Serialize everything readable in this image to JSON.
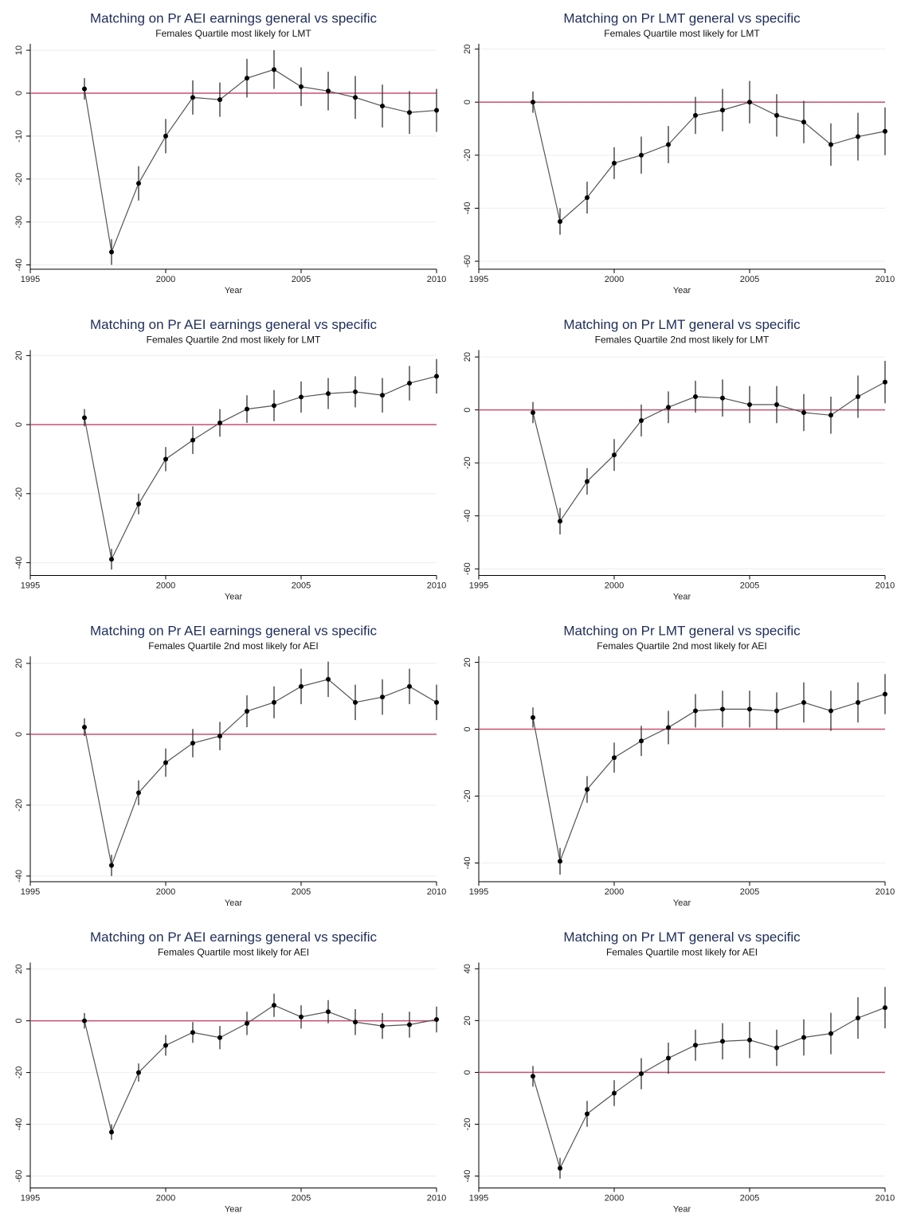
{
  "chart_data": [
    {
      "type": "line",
      "title": "Matching on Pr AEI earnings general vs specific",
      "subtitle": "Females Quartile most likely for LMT",
      "xlabel": "Year",
      "x": [
        1997,
        1998,
        1999,
        2000,
        2001,
        2002,
        2003,
        2004,
        2005,
        2006,
        2007,
        2008,
        2009,
        2010
      ],
      "values": [
        1,
        -37,
        -21,
        -10,
        -1,
        -1.5,
        3.5,
        5.5,
        1.5,
        0.5,
        -1,
        -3,
        -4.5,
        -4
      ],
      "errors": [
        2.5,
        3,
        4,
        4,
        4,
        4,
        4.5,
        4.5,
        4.5,
        4.5,
        5,
        5,
        5,
        5
      ],
      "xlim": [
        1995,
        2010
      ],
      "xticks": [
        1995,
        2000,
        2005,
        2010
      ],
      "ylim": [
        -41,
        11.5
      ],
      "yticks": [
        -40,
        -30,
        -20,
        -10,
        0,
        10
      ],
      "hline": 0,
      "color": "#555555",
      "marker_color": "#000000",
      "hline_color": "#c8506e",
      "grid": true
    },
    {
      "type": "line",
      "title": "Matching on Pr LMT general vs specific",
      "subtitle": "Females Quartile most likely for LMT",
      "xlabel": "Year",
      "x": [
        1997,
        1998,
        1999,
        2000,
        2001,
        2002,
        2003,
        2004,
        2005,
        2006,
        2007,
        2008,
        2009,
        2010
      ],
      "values": [
        0,
        -45,
        -36,
        -23,
        -20,
        -16,
        -5,
        -3,
        0,
        -5,
        -7.5,
        -16,
        -13,
        -11
      ],
      "errors": [
        4,
        5,
        6,
        6,
        7,
        7,
        7,
        8,
        8,
        8,
        8,
        8,
        9,
        9
      ],
      "xlim": [
        1995,
        2010
      ],
      "xticks": [
        1995,
        2000,
        2005,
        2010
      ],
      "ylim": [
        -63,
        22
      ],
      "yticks": [
        -60,
        -40,
        -20,
        0,
        20
      ],
      "hline": 0,
      "color": "#555555",
      "marker_color": "#000000",
      "hline_color": "#c8506e",
      "grid": true
    },
    {
      "type": "line",
      "title": "Matching on Pr AEI earnings general vs specific",
      "subtitle": "Females Quartile 2nd most likely for LMT",
      "xlabel": "Year",
      "x": [
        1997,
        1998,
        1999,
        2000,
        2001,
        2002,
        2003,
        2004,
        2005,
        2006,
        2007,
        2008,
        2009,
        2010
      ],
      "values": [
        2,
        -39,
        -23,
        -10,
        -4.5,
        0.5,
        4.5,
        5.5,
        8,
        9,
        9.5,
        8.5,
        12,
        14
      ],
      "errors": [
        2.5,
        3,
        3,
        3.5,
        4,
        4,
        4,
        4.5,
        4.5,
        4.5,
        4.5,
        5,
        5,
        5
      ],
      "xlim": [
        1995,
        2010
      ],
      "xticks": [
        1995,
        2000,
        2005,
        2010
      ],
      "ylim": [
        -43.7,
        21.6
      ],
      "yticks": [
        -40,
        -20,
        0,
        20
      ],
      "hline": 0,
      "color": "#555555",
      "marker_color": "#000000",
      "hline_color": "#c8506e",
      "grid": true
    },
    {
      "type": "line",
      "title": "Matching on Pr LMT general vs specific",
      "subtitle": "Females Quartile 2nd most likely for LMT",
      "xlabel": "Year",
      "x": [
        1997,
        1998,
        1999,
        2000,
        2001,
        2002,
        2003,
        2004,
        2005,
        2006,
        2007,
        2008,
        2009,
        2010
      ],
      "values": [
        -1,
        -42,
        -27,
        -17,
        -4,
        1,
        5,
        4.5,
        2,
        2,
        -1,
        -2,
        5,
        10.5
      ],
      "errors": [
        4,
        5,
        5,
        6,
        6,
        6,
        6,
        7,
        7,
        7,
        7,
        7,
        8,
        8
      ],
      "xlim": [
        1995,
        2010
      ],
      "xticks": [
        1995,
        2000,
        2005,
        2010
      ],
      "ylim": [
        -62.5,
        22.6
      ],
      "yticks": [
        -60,
        -40,
        -20,
        0,
        20
      ],
      "hline": 0,
      "color": "#555555",
      "marker_color": "#000000",
      "hline_color": "#c8506e",
      "grid": true
    },
    {
      "type": "line",
      "title": "Matching on Pr AEI earnings general vs specific",
      "subtitle": "Females Quartile 2nd most likely for AEI",
      "xlabel": "Year",
      "x": [
        1997,
        1998,
        1999,
        2000,
        2001,
        2002,
        2003,
        2004,
        2005,
        2006,
        2007,
        2008,
        2009,
        2010
      ],
      "values": [
        2,
        -37,
        -16.5,
        -8,
        -2.5,
        -0.5,
        6.5,
        9,
        13.5,
        15.5,
        9,
        10.5,
        13.5,
        9
      ],
      "errors": [
        2.5,
        3,
        3.5,
        4,
        4,
        4,
        4.5,
        4.5,
        5,
        5,
        5,
        5,
        5,
        5
      ],
      "xlim": [
        1995,
        2010
      ],
      "xticks": [
        1995,
        2000,
        2005,
        2010
      ],
      "ylim": [
        -41.6,
        22
      ],
      "yticks": [
        -40,
        -20,
        0,
        20
      ],
      "hline": 0,
      "color": "#555555",
      "marker_color": "#000000",
      "hline_color": "#c8506e",
      "grid": true
    },
    {
      "type": "line",
      "title": "Matching on Pr LMT general vs specific",
      "subtitle": "Females Quartile 2nd most likely for AEI",
      "xlabel": "Year",
      "x": [
        1997,
        1998,
        1999,
        2000,
        2001,
        2002,
        2003,
        2004,
        2005,
        2006,
        2007,
        2008,
        2009,
        2010
      ],
      "values": [
        3.5,
        -39.5,
        -18,
        -8.5,
        -3.5,
        0.5,
        5.5,
        6,
        6,
        5.5,
        8,
        5.5,
        8,
        10.5
      ],
      "errors": [
        3,
        4,
        4,
        4.5,
        4.5,
        5,
        5,
        5.5,
        5.5,
        5.5,
        6,
        6,
        6,
        6
      ],
      "xlim": [
        1995,
        2010
      ],
      "xticks": [
        1995,
        2000,
        2005,
        2010
      ],
      "ylim": [
        -45.6,
        21.8
      ],
      "yticks": [
        -40,
        -20,
        0,
        20
      ],
      "hline": 0,
      "color": "#555555",
      "marker_color": "#000000",
      "hline_color": "#c8506e",
      "grid": true
    },
    {
      "type": "line",
      "title": "Matching on Pr AEI earnings general vs specific",
      "subtitle": "Females Quartile most likely for AEI",
      "xlabel": "Year",
      "x": [
        1997,
        1998,
        1999,
        2000,
        2001,
        2002,
        2003,
        2004,
        2005,
        2006,
        2007,
        2008,
        2009,
        2010
      ],
      "values": [
        0,
        -43,
        -20,
        -9.5,
        -4.5,
        -6.5,
        -1,
        6,
        1.5,
        3.5,
        -0.5,
        -2,
        -1.5,
        0.5
      ],
      "errors": [
        3,
        3,
        3.5,
        4,
        4,
        4.5,
        4.5,
        4.5,
        4.5,
        4.5,
        5,
        5,
        5,
        5
      ],
      "xlim": [
        1995,
        2010
      ],
      "xticks": [
        1995,
        2000,
        2005,
        2010
      ],
      "ylim": [
        -64.6,
        22.5
      ],
      "yticks": [
        -60,
        -40,
        -20,
        0,
        20
      ],
      "hline": 0,
      "color": "#555555",
      "marker_color": "#000000",
      "hline_color": "#c8506e",
      "grid": true
    },
    {
      "type": "line",
      "title": "Matching on Pr LMT general vs specific",
      "subtitle": "Females Quartile most likely for AEI",
      "xlabel": "Year",
      "x": [
        1997,
        1998,
        1999,
        2000,
        2001,
        2002,
        2003,
        2004,
        2005,
        2006,
        2007,
        2008,
        2009,
        2010
      ],
      "values": [
        -1.5,
        -37,
        -16,
        -8,
        -0.5,
        5.5,
        10.5,
        12,
        12.5,
        9.5,
        13.5,
        15,
        21,
        25
      ],
      "errors": [
        4,
        4,
        5,
        5,
        6,
        6,
        6,
        7,
        7,
        7,
        7,
        8,
        8,
        8
      ],
      "xlim": [
        1995,
        2010
      ],
      "xticks": [
        1995,
        2000,
        2005,
        2010
      ],
      "ylim": [
        -44.6,
        42.4
      ],
      "yticks": [
        -40,
        -20,
        0,
        20,
        40
      ],
      "hline": 0,
      "color": "#555555",
      "marker_color": "#000000",
      "hline_color": "#c8506e",
      "grid": true
    }
  ]
}
